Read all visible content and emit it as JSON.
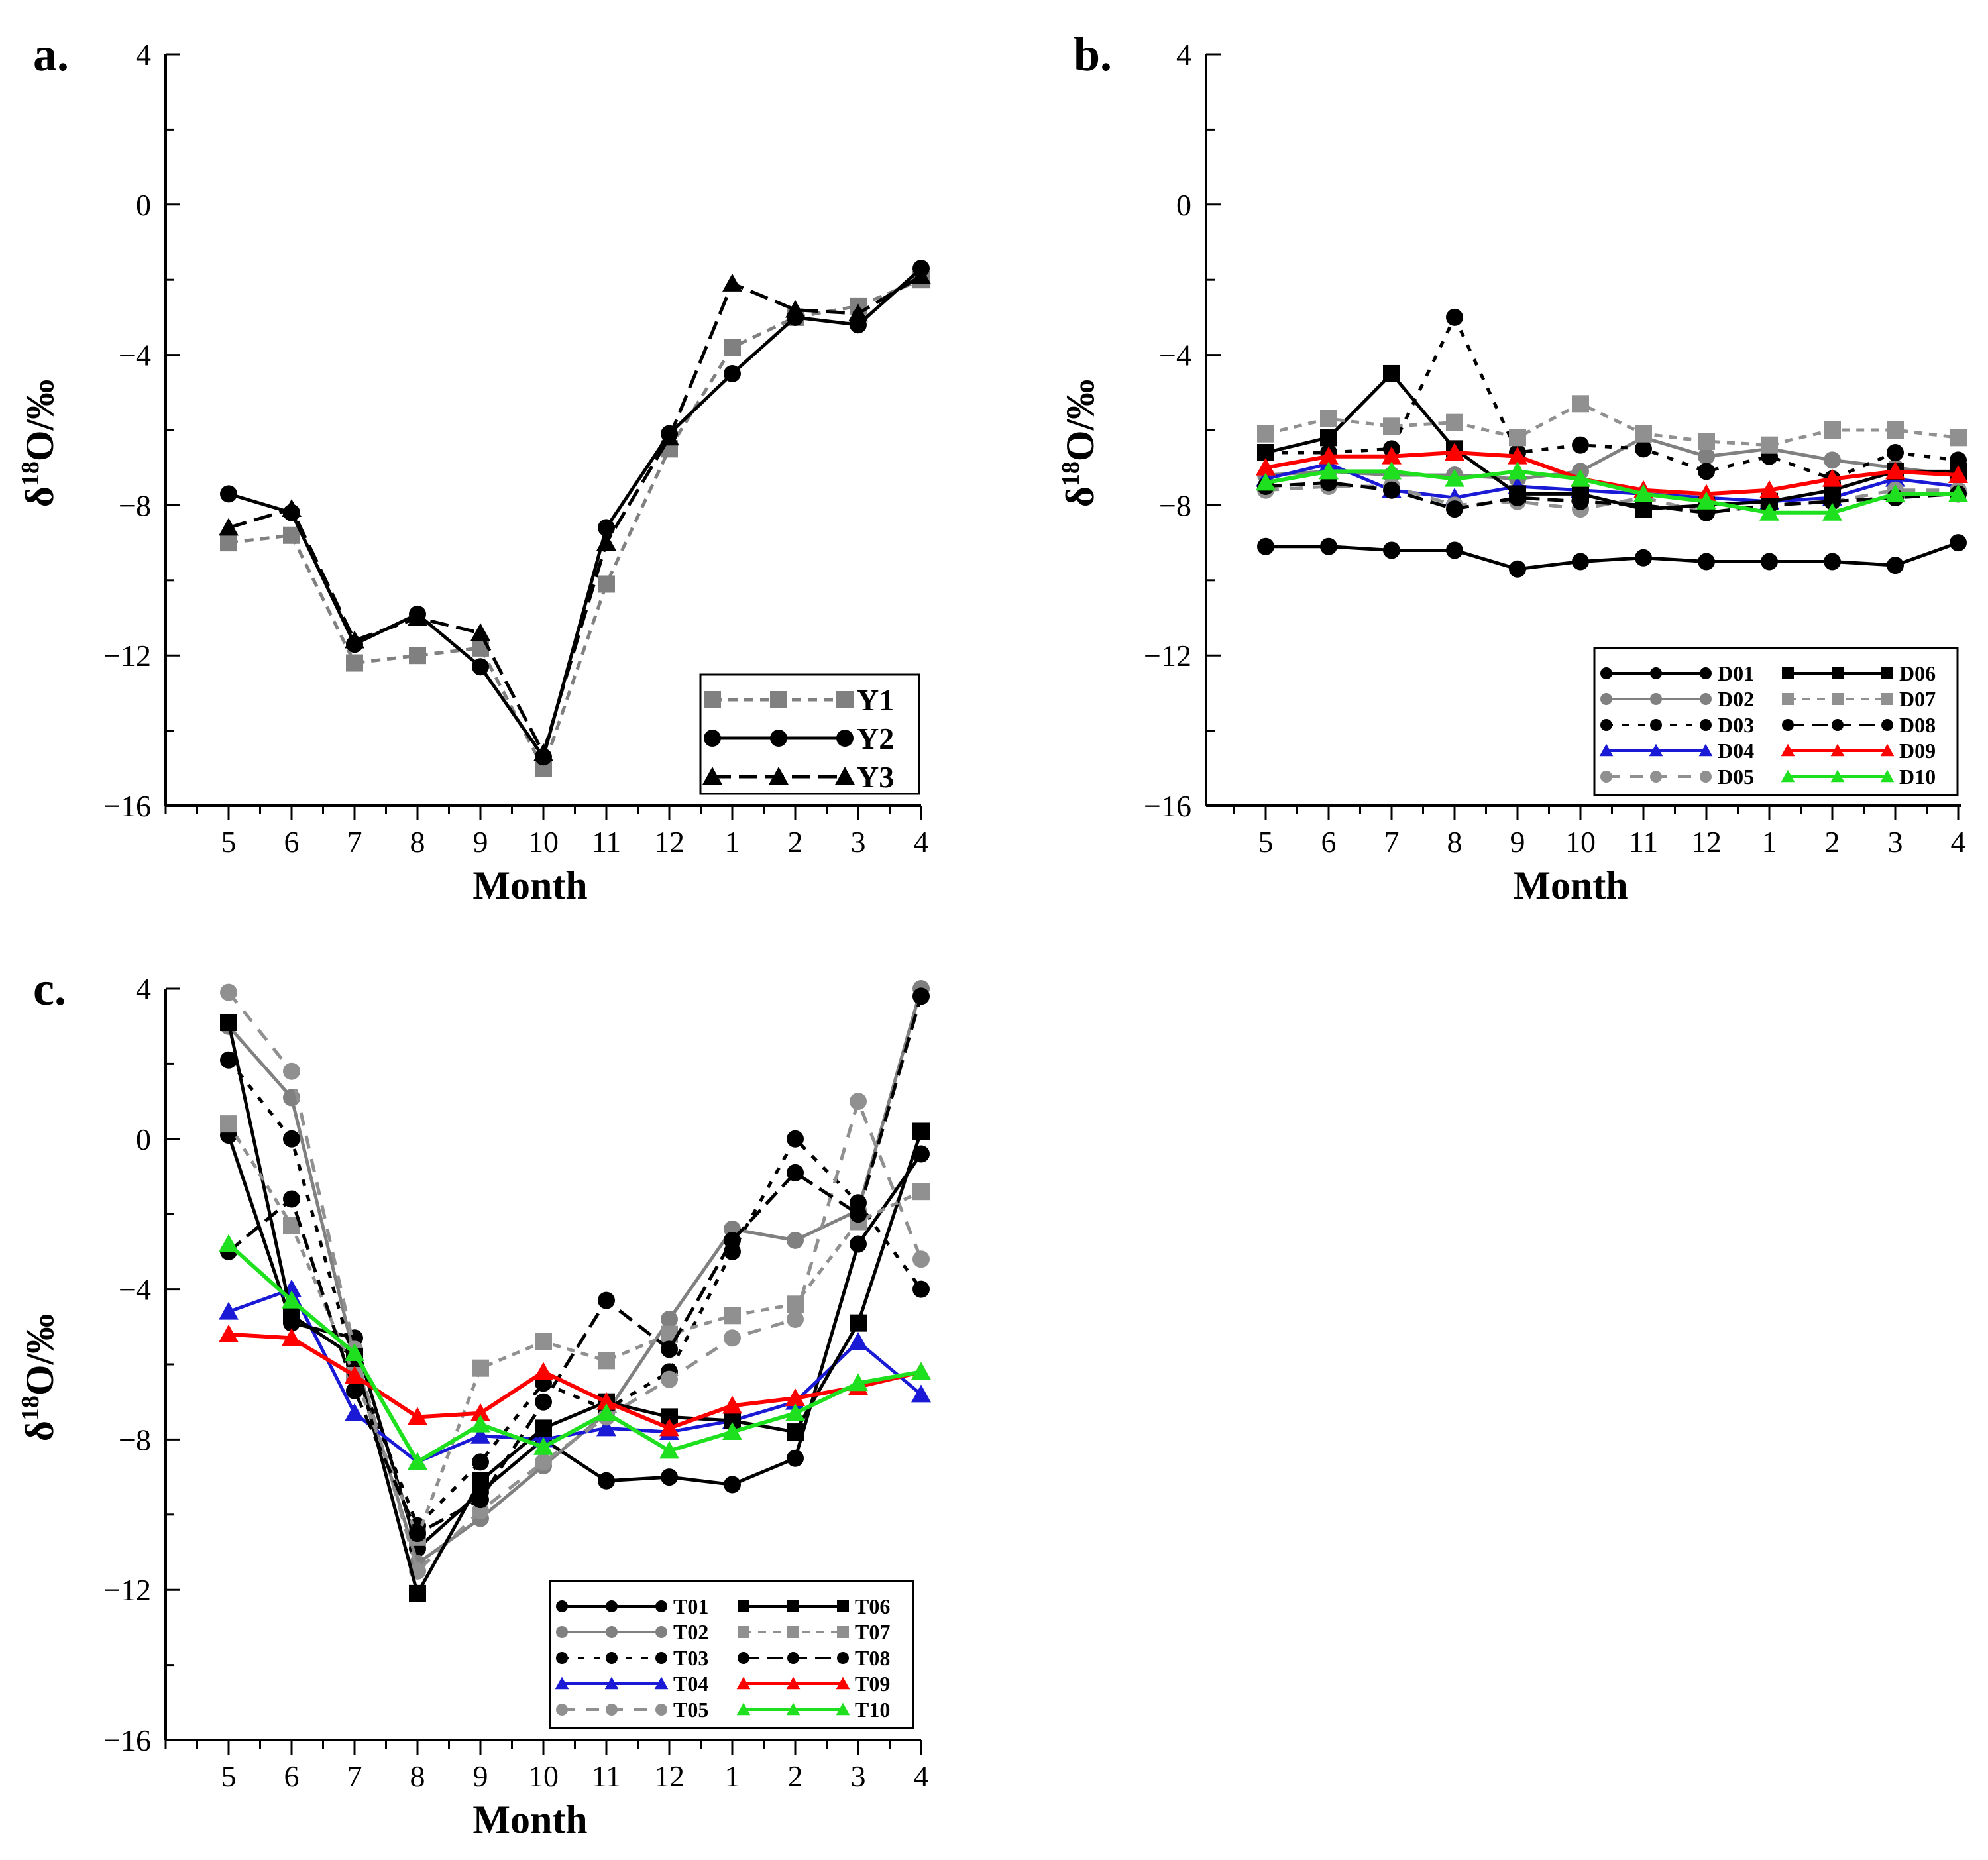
{
  "figure": {
    "ylabel": "δ18O/‰"
  },
  "chart_data": [
    {
      "id": "a",
      "panel_label": "a.",
      "type": "line",
      "xlabel": "Month",
      "ylabel": "δ18O/‰",
      "categories": [
        "5",
        "6",
        "7",
        "8",
        "9",
        "10",
        "11",
        "12",
        "1",
        "2",
        "3",
        "4"
      ],
      "ylim": [
        -16,
        4
      ],
      "yticks": [
        4,
        0,
        -4,
        -8,
        -12,
        -16
      ],
      "ytick_labels": [
        "4",
        "0",
        "−4",
        "−8",
        "−12",
        "−16"
      ],
      "legend_position": "bottom-right",
      "legend_columns": 1,
      "series": [
        {
          "name": "Y1",
          "values": [
            -9.0,
            -8.8,
            -12.2,
            -12.0,
            -11.8,
            -15.0,
            -10.1,
            -6.5,
            -3.8,
            -3.0,
            -2.7,
            -2.0
          ],
          "color": "#808080",
          "dash": "14,10",
          "marker": "square",
          "width": 5
        },
        {
          "name": "Y2",
          "values": [
            -7.7,
            -8.2,
            -11.7,
            -10.9,
            -12.3,
            -14.7,
            -8.6,
            -6.1,
            -4.5,
            -3.0,
            -3.2,
            -1.7
          ],
          "color": "#000000",
          "dash": "",
          "marker": "circle",
          "width": 5
        },
        {
          "name": "Y3",
          "values": [
            -8.6,
            -8.1,
            -11.6,
            -11.0,
            -11.4,
            -14.6,
            -9.0,
            -6.2,
            -2.1,
            -2.8,
            -2.9,
            -1.9
          ],
          "color": "#000000",
          "dash": "28,12",
          "marker": "triangle",
          "width": 5
        }
      ]
    },
    {
      "id": "b",
      "panel_label": "b.",
      "type": "line",
      "xlabel": "Month",
      "ylabel": "δ18O/‰",
      "categories": [
        "5",
        "6",
        "7",
        "8",
        "9",
        "10",
        "11",
        "12",
        "1",
        "2",
        "3",
        "4"
      ],
      "ylim": [
        -16,
        4
      ],
      "yticks": [
        4,
        0,
        -4,
        -8,
        -12,
        -16
      ],
      "ytick_labels": [
        "4",
        "0",
        "−4",
        "−8",
        "−12",
        "−16"
      ],
      "legend_position": "bottom-right",
      "legend_columns": 2,
      "series": [
        {
          "name": "D01",
          "values": [
            -9.1,
            -9.1,
            -9.2,
            -9.2,
            -9.7,
            -9.5,
            -9.4,
            -9.5,
            -9.5,
            -9.5,
            -9.6,
            -9.0
          ],
          "color": "#000000",
          "dash": "",
          "marker": "circle",
          "width": 5
        },
        {
          "name": "D02",
          "values": [
            -7.2,
            -7.1,
            -7.2,
            -7.2,
            -7.3,
            -7.1,
            -6.2,
            -6.7,
            -6.5,
            -6.8,
            -7.0,
            -7.2
          ],
          "color": "#808080",
          "dash": "",
          "marker": "circle",
          "width": 5
        },
        {
          "name": "D03",
          "values": [
            -6.6,
            -6.6,
            -6.5,
            -3.0,
            -6.6,
            -6.4,
            -6.5,
            -7.1,
            -6.7,
            -7.3,
            -6.6,
            -6.8
          ],
          "color": "#000000",
          "dash": "10,14",
          "marker": "circle",
          "width": 5
        },
        {
          "name": "D04",
          "values": [
            -7.3,
            -6.9,
            -7.6,
            -7.8,
            -7.5,
            -7.6,
            -7.7,
            -7.8,
            -7.9,
            -7.8,
            -7.3,
            -7.5
          ],
          "color": "#1a1ad6",
          "dash": "",
          "marker": "triangle",
          "width": 5
        },
        {
          "name": "D05",
          "values": [
            -7.6,
            -7.5,
            -7.5,
            -8.0,
            -7.9,
            -8.1,
            -7.8,
            -8.2,
            -8.0,
            -7.9,
            -7.6,
            -7.6
          ],
          "color": "#909090",
          "dash": "20,16",
          "marker": "circle",
          "width": 5
        },
        {
          "name": "D06",
          "values": [
            -6.6,
            -6.2,
            -4.5,
            -6.5,
            -7.7,
            -7.7,
            -8.1,
            -8.0,
            -7.9,
            -7.6,
            -7.1,
            -7.1
          ],
          "color": "#000000",
          "dash": "",
          "marker": "square",
          "width": 5
        },
        {
          "name": "D07",
          "values": [
            -6.1,
            -5.7,
            -5.9,
            -5.8,
            -6.2,
            -5.3,
            -6.1,
            -6.3,
            -6.4,
            -6.0,
            -6.0,
            -6.2
          ],
          "color": "#909090",
          "dash": "12,10",
          "marker": "square",
          "width": 5
        },
        {
          "name": "D08",
          "values": [
            -7.5,
            -7.4,
            -7.6,
            -8.1,
            -7.8,
            -7.9,
            -8.0,
            -8.2,
            -8.0,
            -7.9,
            -7.8,
            -7.7
          ],
          "color": "#000000",
          "dash": "24,12",
          "marker": "circle",
          "width": 5
        },
        {
          "name": "D09",
          "values": [
            -7.0,
            -6.7,
            -6.7,
            -6.6,
            -6.7,
            -7.3,
            -7.6,
            -7.7,
            -7.6,
            -7.3,
            -7.1,
            -7.2
          ],
          "color": "#ff0000",
          "dash": "",
          "marker": "triangle",
          "width": 6
        },
        {
          "name": "D10",
          "values": [
            -7.4,
            -7.1,
            -7.1,
            -7.3,
            -7.1,
            -7.3,
            -7.7,
            -7.9,
            -8.2,
            -8.2,
            -7.7,
            -7.7
          ],
          "color": "#1ee01e",
          "dash": "",
          "marker": "triangle",
          "width": 6
        }
      ]
    },
    {
      "id": "c",
      "panel_label": "c.",
      "type": "line",
      "xlabel": "Month",
      "ylabel": "δ18O/‰",
      "categories": [
        "5",
        "6",
        "7",
        "8",
        "9",
        "10",
        "11",
        "12",
        "1",
        "2",
        "3",
        "4"
      ],
      "ylim": [
        -16,
        4
      ],
      "yticks": [
        4,
        0,
        -4,
        -8,
        -12,
        -16
      ],
      "ytick_labels": [
        "4",
        "0",
        "−4",
        "−8",
        "−12",
        "−16"
      ],
      "legend_position": "bottom-right",
      "legend_columns": 2,
      "series": [
        {
          "name": "T01",
          "values": [
            0.1,
            -4.9,
            -5.3,
            -10.9,
            -9.4,
            -8.0,
            -9.1,
            -9.0,
            -9.2,
            -8.5,
            -2.8,
            -0.4
          ],
          "color": "#000000",
          "dash": "",
          "marker": "circle",
          "width": 5
        },
        {
          "name": "T02",
          "values": [
            3.0,
            1.1,
            -5.8,
            -11.3,
            -10.1,
            -8.7,
            -7.3,
            -4.8,
            -2.4,
            -2.7,
            -1.9,
            4.0
          ],
          "color": "#808080",
          "dash": "",
          "marker": "circle",
          "width": 5
        },
        {
          "name": "T03",
          "values": [
            2.1,
            0.0,
            -6.0,
            -10.3,
            -8.6,
            -6.5,
            -7.2,
            -6.2,
            -3.0,
            0.0,
            -1.7,
            -4.0
          ],
          "color": "#000000",
          "dash": "10,14",
          "marker": "circle",
          "width": 5
        },
        {
          "name": "T04",
          "values": [
            -4.6,
            -4.0,
            -7.3,
            -8.6,
            -7.9,
            -8.0,
            -7.7,
            -7.8,
            -7.5,
            -7.0,
            -5.4,
            -6.8
          ],
          "color": "#1a1ad6",
          "dash": "",
          "marker": "triangle",
          "width": 5
        },
        {
          "name": "T05",
          "values": [
            3.9,
            1.8,
            -5.6,
            -11.5,
            -9.9,
            -8.6,
            -7.4,
            -6.4,
            -5.3,
            -4.8,
            1.0,
            -3.2
          ],
          "color": "#909090",
          "dash": "20,16",
          "marker": "circle",
          "width": 5
        },
        {
          "name": "T06",
          "values": [
            3.1,
            -4.7,
            -5.8,
            -12.1,
            -9.1,
            -7.7,
            -7.0,
            -7.4,
            -7.5,
            -7.8,
            -4.9,
            0.2
          ],
          "color": "#000000",
          "dash": "",
          "marker": "square",
          "width": 5
        },
        {
          "name": "T07",
          "values": [
            0.4,
            -2.3,
            -6.3,
            -10.6,
            -6.1,
            -5.4,
            -5.9,
            -5.2,
            -4.7,
            -4.4,
            -2.2,
            -1.4
          ],
          "color": "#909090",
          "dash": "12,10",
          "marker": "square",
          "width": 5
        },
        {
          "name": "T08",
          "values": [
            -3.0,
            -1.6,
            -6.7,
            -10.5,
            -9.6,
            -7.0,
            -4.3,
            -5.6,
            -2.7,
            -0.9,
            -2.0,
            3.8
          ],
          "color": "#000000",
          "dash": "24,12",
          "marker": "circle",
          "width": 5
        },
        {
          "name": "T09",
          "values": [
            -5.2,
            -5.3,
            -6.3,
            -7.4,
            -7.3,
            -6.2,
            -7.0,
            -7.7,
            -7.1,
            -6.9,
            -6.6,
            -6.2
          ],
          "color": "#ff0000",
          "dash": "",
          "marker": "triangle",
          "width": 6
        },
        {
          "name": "T10",
          "values": [
            -2.8,
            -4.3,
            -5.7,
            -8.6,
            -7.6,
            -8.2,
            -7.3,
            -8.3,
            -7.8,
            -7.3,
            -6.5,
            -6.2
          ],
          "color": "#1ee01e",
          "dash": "",
          "marker": "triangle",
          "width": 6
        }
      ]
    }
  ]
}
